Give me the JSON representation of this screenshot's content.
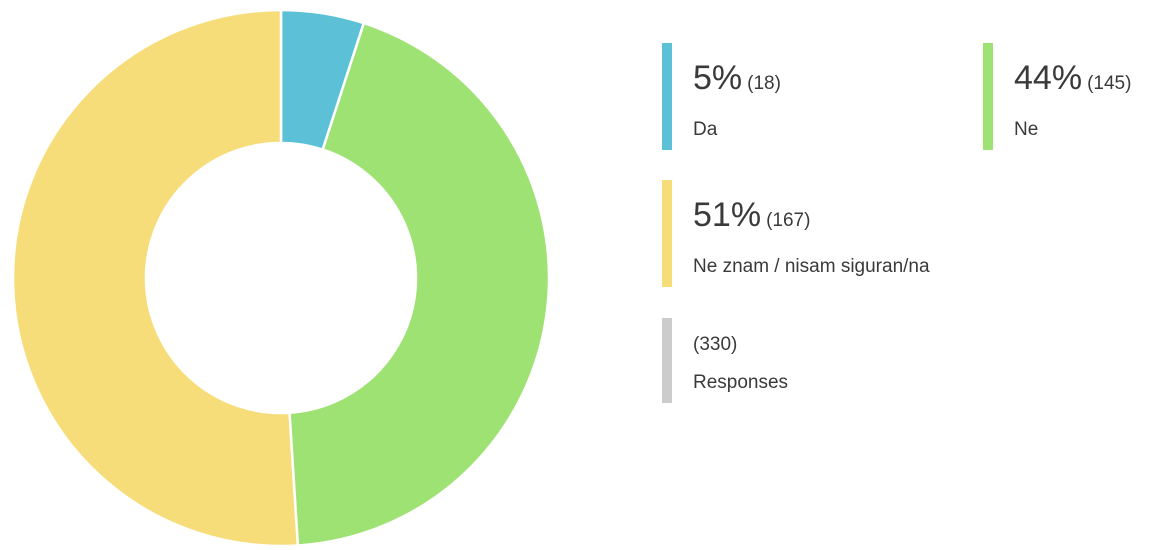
{
  "chart_data": {
    "type": "donut",
    "categories": [
      "Da",
      "Ne",
      "Ne znam / nisam siguran/na"
    ],
    "values": [
      5,
      44,
      51
    ],
    "value_labels": [
      "5%",
      "44%",
      "51%"
    ],
    "counts": [
      18,
      145,
      167
    ],
    "count_labels": [
      "(18)",
      "(145)",
      "(167)"
    ],
    "colors": [
      "#5cc1d6",
      "#9de272",
      "#f7dd79"
    ],
    "total": 330,
    "total_label": "(330)",
    "total_name": "Responses"
  }
}
